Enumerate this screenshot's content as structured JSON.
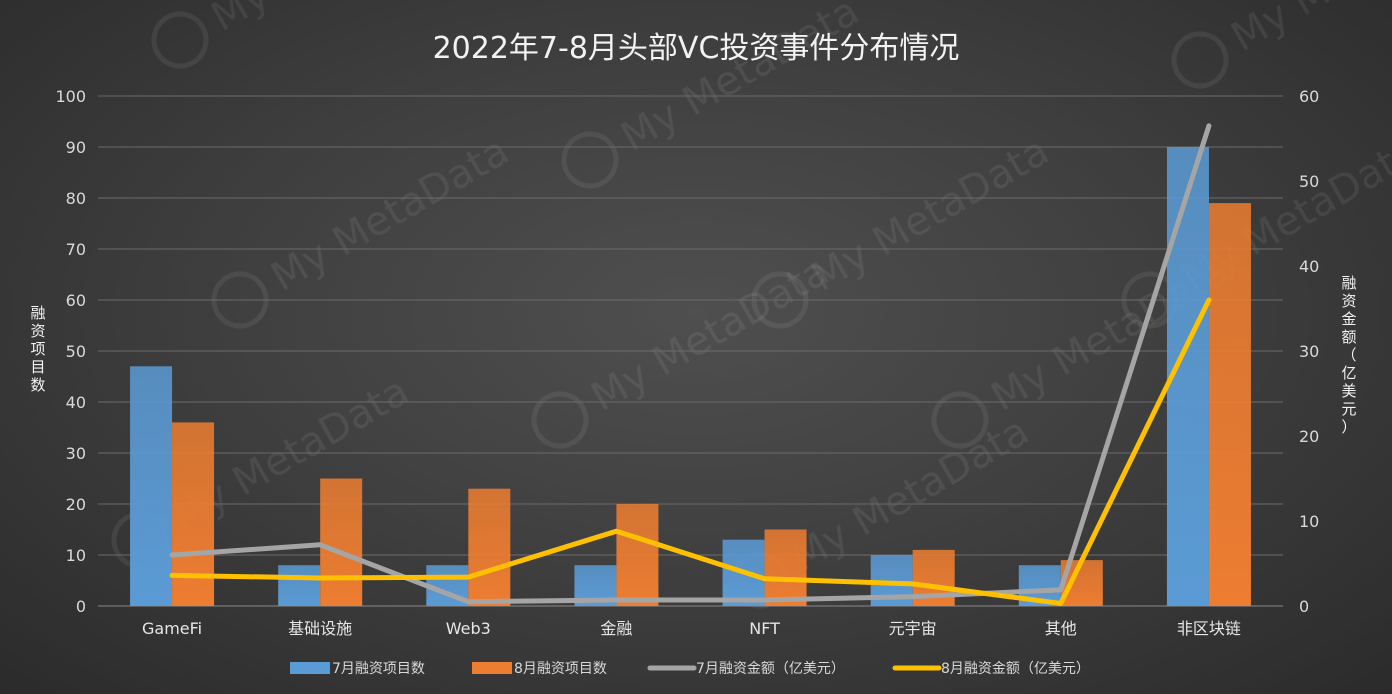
{
  "chart_data": {
    "type": "bar",
    "title": "2022年7-8月头部VC投资事件分布情况",
    "categories": [
      "GameFi",
      "基础设施",
      "Web3",
      "金融",
      "NFT",
      "元宇宙",
      "其他",
      "非区块链"
    ],
    "ylabel": "融资项目数",
    "y2label": "融资金额（亿美元）",
    "ylim": [
      0,
      100
    ],
    "y2lim": [
      0,
      60
    ],
    "yticks": [
      "0",
      "10",
      "20",
      "30",
      "40",
      "50",
      "60",
      "70",
      "80",
      "90",
      "100"
    ],
    "y2ticks": [
      "0",
      "10",
      "20",
      "30",
      "40",
      "50",
      "60"
    ],
    "grid": true,
    "legend_position": "bottom",
    "series": [
      {
        "name": "7月融资项目数",
        "kind": "bar",
        "axis": "left",
        "color": "#5b9bd5",
        "values": [
          47,
          8,
          8,
          8,
          13,
          10,
          8,
          90
        ]
      },
      {
        "name": "8月融资项目数",
        "kind": "bar",
        "axis": "left",
        "color": "#ed7d31",
        "values": [
          36,
          25,
          23,
          20,
          15,
          11,
          9,
          79
        ]
      },
      {
        "name": "7月融资金额（亿美元）",
        "kind": "line",
        "axis": "right",
        "color": "#a5a5a5",
        "values": [
          6.0,
          7.2,
          0.5,
          0.7,
          0.7,
          1.1,
          1.9,
          56.5
        ]
      },
      {
        "name": "8月融资金额（亿美元）",
        "kind": "line",
        "axis": "right",
        "color": "#ffc000",
        "values": [
          3.6,
          3.3,
          3.4,
          8.8,
          3.2,
          2.6,
          0.3,
          36.0
        ]
      }
    ]
  },
  "watermark": "My MetaData"
}
